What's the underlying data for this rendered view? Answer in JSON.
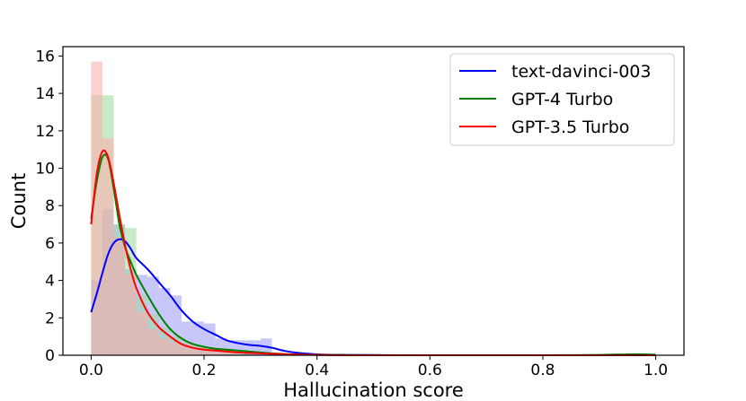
{
  "chart_data": {
    "type": "histogram-kde",
    "xlabel": "Hallucination score",
    "ylabel": "Count",
    "xlim": [
      -0.05,
      1.05
    ],
    "ylim": [
      0,
      16.5
    ],
    "xticks": [
      0.0,
      0.2,
      0.4,
      0.6,
      0.8,
      1.0
    ],
    "xtick_labels": [
      "0.0",
      "0.2",
      "0.4",
      "0.6",
      "0.8",
      "1.0"
    ],
    "yticks": [
      0,
      2,
      4,
      6,
      8,
      10,
      12,
      14,
      16
    ],
    "ytick_labels": [
      "0",
      "2",
      "4",
      "6",
      "8",
      "10",
      "12",
      "14",
      "16"
    ],
    "legend_position": "top-right",
    "grid": false,
    "series": [
      {
        "name": "text-davinci-003",
        "color": "#0000ff",
        "bar_color": "#9999f5",
        "hist": {
          "edges": [
            0.0,
            0.02,
            0.04,
            0.06,
            0.08,
            0.1,
            0.12,
            0.14,
            0.16,
            0.18,
            0.2,
            0.22,
            0.24,
            0.26,
            0.28,
            0.3,
            0.32
          ],
          "counts": [
            4.0,
            7.8,
            7.0,
            4.6,
            4.3,
            4.2,
            3.6,
            3.2,
            1.8,
            1.8,
            1.7,
            0.9,
            0.8,
            0.8,
            0.8,
            0.9
          ]
        },
        "kde": {
          "x": [
            0.0,
            0.01,
            0.02,
            0.03,
            0.04,
            0.05,
            0.06,
            0.07,
            0.08,
            0.1,
            0.12,
            0.14,
            0.16,
            0.18,
            0.2,
            0.22,
            0.24,
            0.26,
            0.28,
            0.3,
            0.32,
            0.34,
            0.36,
            0.4,
            0.45,
            0.5,
            0.55,
            0.6,
            0.7,
            0.8,
            0.9,
            1.0
          ],
          "y": [
            2.3,
            3.3,
            4.4,
            5.4,
            6.0,
            6.2,
            6.1,
            5.7,
            5.2,
            4.6,
            3.9,
            3.2,
            2.4,
            1.8,
            1.4,
            1.1,
            0.8,
            0.65,
            0.55,
            0.5,
            0.4,
            0.25,
            0.15,
            0.05,
            0.02,
            0.01,
            0.0,
            0.0,
            0.0,
            0.0,
            0.0,
            0.0
          ]
        }
      },
      {
        "name": "GPT-4 Turbo",
        "color": "#008000",
        "bar_color": "#9dd89d",
        "hist": {
          "edges": [
            0.0,
            0.02,
            0.04,
            0.06,
            0.08,
            0.1,
            0.12,
            0.14,
            0.16,
            0.18,
            0.2,
            0.22,
            0.24,
            0.26,
            0.28
          ],
          "counts": [
            13.9,
            13.9,
            7.0,
            6.8,
            3.2,
            2.2,
            1.5,
            1.0,
            0.7,
            0.6,
            0.4,
            0.4,
            0.3,
            0.3
          ]
        },
        "kde": {
          "x": [
            0.0,
            0.01,
            0.02,
            0.03,
            0.04,
            0.05,
            0.06,
            0.07,
            0.08,
            0.1,
            0.12,
            0.14,
            0.16,
            0.18,
            0.2,
            0.22,
            0.24,
            0.26,
            0.28,
            0.3,
            0.32,
            0.34,
            0.36,
            0.4,
            0.45,
            0.5,
            0.6,
            0.7,
            0.8,
            0.9,
            0.95,
            0.98,
            1.0
          ],
          "y": [
            7.3,
            9.3,
            10.6,
            10.5,
            8.9,
            7.0,
            5.8,
            5.0,
            4.3,
            3.2,
            2.2,
            1.4,
            0.9,
            0.6,
            0.45,
            0.35,
            0.3,
            0.25,
            0.2,
            0.15,
            0.1,
            0.07,
            0.05,
            0.02,
            0.01,
            0.0,
            0.0,
            0.0,
            0.0,
            0.02,
            0.05,
            0.05,
            0.03
          ]
        }
      },
      {
        "name": "GPT-3.5 Turbo",
        "color": "#ff0000",
        "bar_color": "#ffaaaa",
        "hist": {
          "edges": [
            0.0,
            0.02,
            0.04,
            0.06,
            0.08,
            0.1,
            0.12,
            0.14,
            0.16,
            0.18,
            0.2,
            0.22,
            0.24,
            0.26
          ],
          "counts": [
            15.7,
            11.6,
            6.3,
            4.3,
            2.3,
            1.4,
            0.9,
            0.7,
            0.6,
            0.4,
            0.3,
            0.2,
            0.1
          ]
        },
        "kde": {
          "x": [
            0.0,
            0.01,
            0.02,
            0.03,
            0.04,
            0.05,
            0.06,
            0.07,
            0.08,
            0.1,
            0.12,
            0.14,
            0.16,
            0.18,
            0.2,
            0.22,
            0.24,
            0.26,
            0.28,
            0.3,
            0.32,
            0.34,
            0.36,
            0.4,
            0.45,
            0.5,
            0.6,
            0.8,
            1.0
          ],
          "y": [
            7.0,
            9.7,
            10.9,
            10.6,
            9.2,
            7.5,
            5.9,
            4.6,
            3.6,
            2.3,
            1.5,
            1.0,
            0.6,
            0.4,
            0.3,
            0.25,
            0.2,
            0.15,
            0.12,
            0.1,
            0.08,
            0.06,
            0.04,
            0.02,
            0.0,
            0.0,
            0.0,
            0.0,
            0.0
          ]
        }
      }
    ]
  }
}
